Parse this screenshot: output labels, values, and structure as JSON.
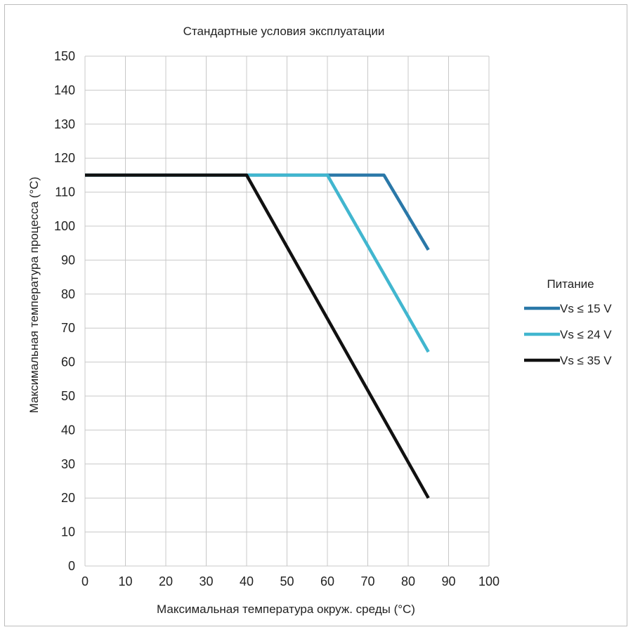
{
  "chart_data": {
    "type": "line",
    "title": "Стандартные условия эксплуатации",
    "xlabel": "Максимальная температура окруж. среды (°C)",
    "ylabel": "Максимальная температура процесса  (°C)",
    "xlim": [
      0,
      100
    ],
    "ylim": [
      0,
      150
    ],
    "x_ticks": [
      0,
      10,
      20,
      30,
      40,
      50,
      60,
      70,
      80,
      90,
      100
    ],
    "y_ticks": [
      0,
      10,
      20,
      30,
      40,
      50,
      60,
      70,
      80,
      90,
      100,
      110,
      120,
      130,
      140,
      150
    ],
    "grid": true,
    "legend": {
      "title": "Питание",
      "placement": "right"
    },
    "series": [
      {
        "name": "Vs ≤ 15 V",
        "color": "#2a78a8",
        "x": [
          0,
          74,
          85
        ],
        "y": [
          115,
          115,
          93
        ]
      },
      {
        "name": "Vs ≤ 24 V",
        "color": "#41b6cf",
        "x": [
          0,
          60,
          85
        ],
        "y": [
          115,
          115,
          63
        ]
      },
      {
        "name": "Vs ≤ 35 V",
        "color": "#111111",
        "x": [
          0,
          40,
          85
        ],
        "y": [
          115,
          115,
          20
        ]
      }
    ]
  }
}
